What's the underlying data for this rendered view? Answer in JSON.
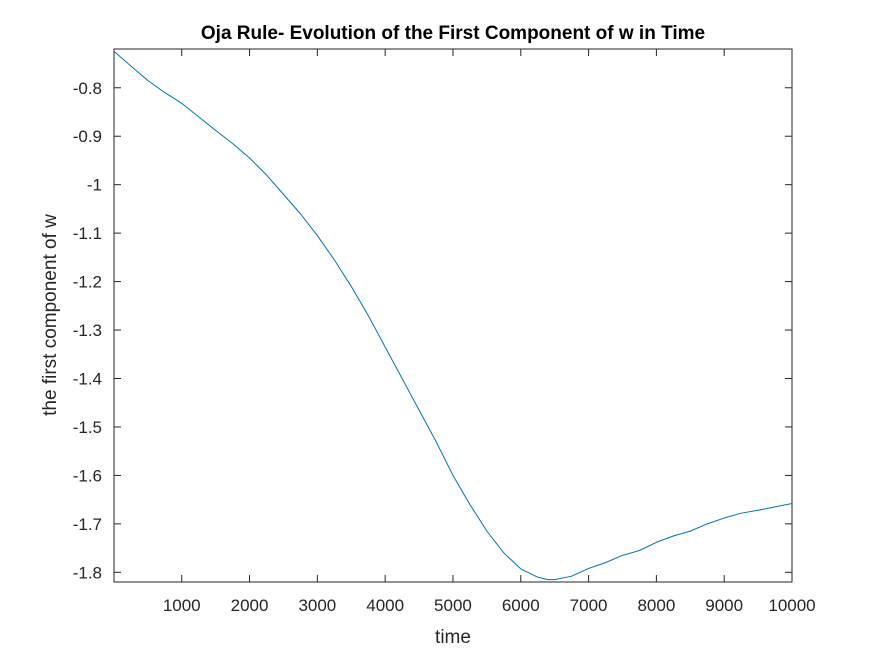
{
  "chart_data": {
    "type": "line",
    "title": "Oja Rule- Evolution of the First Component of w in Time",
    "xlabel": "time",
    "ylabel": "the first component of w",
    "xlim": [
      1,
      10000
    ],
    "ylim": [
      -1.82,
      -0.72
    ],
    "xticks": [
      1000,
      2000,
      3000,
      4000,
      5000,
      6000,
      7000,
      8000,
      9000,
      10000
    ],
    "yticks": [
      -0.8,
      -0.9,
      -1,
      -1.1,
      -1.2,
      -1.3,
      -1.4,
      -1.5,
      -1.6,
      -1.7,
      -1.8
    ],
    "grid": false,
    "series": [
      {
        "color": "#0072BD",
        "x": [
          1,
          250,
          500,
          750,
          1000,
          1250,
          1500,
          1750,
          2000,
          2250,
          2500,
          2750,
          3000,
          3250,
          3500,
          3750,
          4000,
          4250,
          4500,
          4750,
          5000,
          5250,
          5500,
          5750,
          6000,
          6250,
          6400,
          6500,
          6750,
          7000,
          7250,
          7500,
          7750,
          8000,
          8250,
          8500,
          8750,
          9000,
          9250,
          9500,
          9750,
          10000
        ],
        "y": [
          -0.725,
          -0.755,
          -0.785,
          -0.81,
          -0.832,
          -0.86,
          -0.888,
          -0.915,
          -0.945,
          -0.98,
          -1.02,
          -1.06,
          -1.105,
          -1.155,
          -1.21,
          -1.27,
          -1.335,
          -1.4,
          -1.465,
          -1.53,
          -1.6,
          -1.66,
          -1.715,
          -1.76,
          -1.793,
          -1.81,
          -1.815,
          -1.815,
          -1.808,
          -1.792,
          -1.78,
          -1.765,
          -1.755,
          -1.738,
          -1.725,
          -1.715,
          -1.7,
          -1.688,
          -1.678,
          -1.672,
          -1.665,
          -1.658
        ]
      }
    ]
  }
}
